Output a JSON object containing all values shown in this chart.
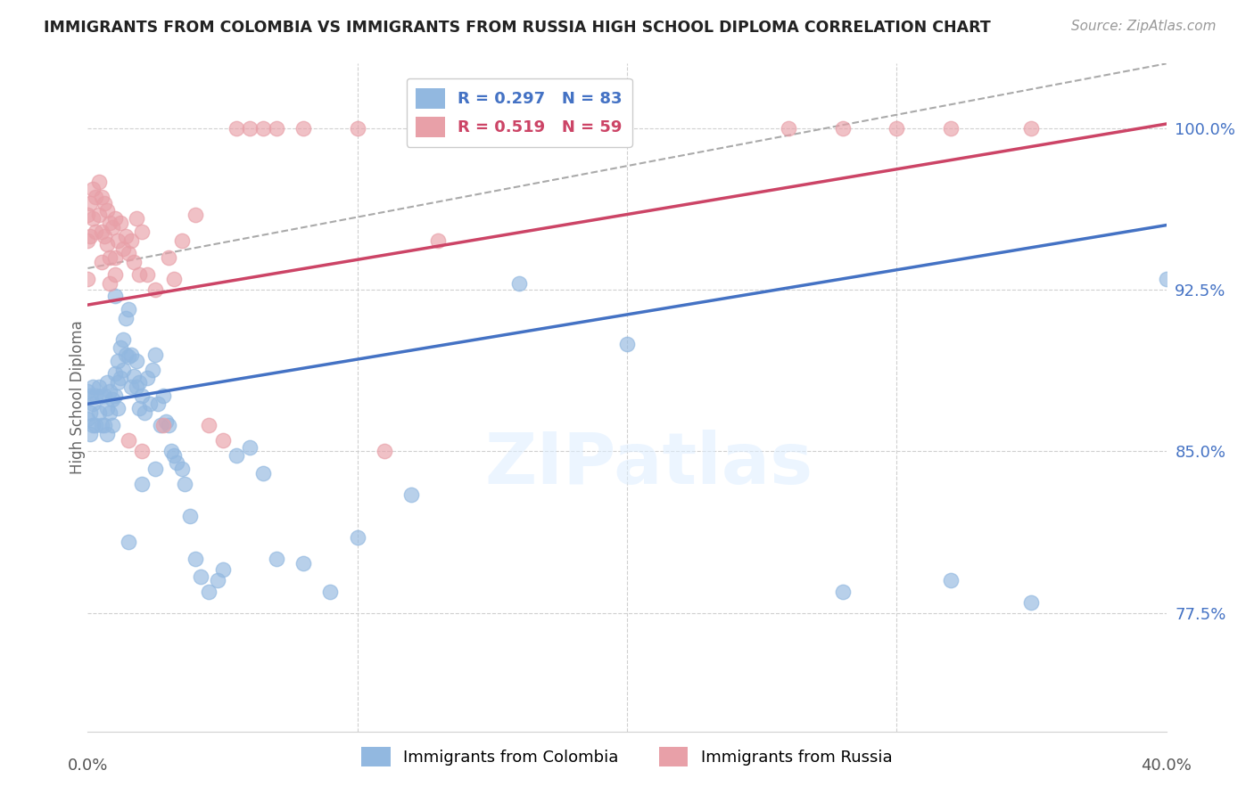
{
  "title": "IMMIGRANTS FROM COLOMBIA VS IMMIGRANTS FROM RUSSIA HIGH SCHOOL DIPLOMA CORRELATION CHART",
  "source": "Source: ZipAtlas.com",
  "ylabel": "High School Diploma",
  "ytick_values": [
    0.775,
    0.85,
    0.925,
    1.0
  ],
  "xlim": [
    0.0,
    0.4
  ],
  "ylim": [
    0.72,
    1.03
  ],
  "color_colombia": "#92b8e0",
  "color_russia": "#e8a0a8",
  "color_line_colombia": "#4472c4",
  "color_line_russia": "#cc4466",
  "color_dashed": "#aaaaaa",
  "r_colombia": 0.297,
  "n_colombia": 83,
  "r_russia": 0.519,
  "n_russia": 59,
  "colombia_line": [
    0.0,
    0.872,
    0.4,
    0.955
  ],
  "russia_line": [
    0.0,
    0.918,
    0.4,
    1.002
  ],
  "dashed_line": [
    0.0,
    0.935,
    0.4,
    1.03
  ],
  "colombia_points_x": [
    0.0,
    0.0,
    0.001,
    0.001,
    0.001,
    0.002,
    0.002,
    0.002,
    0.003,
    0.003,
    0.004,
    0.004,
    0.005,
    0.005,
    0.006,
    0.006,
    0.007,
    0.007,
    0.007,
    0.008,
    0.008,
    0.009,
    0.009,
    0.01,
    0.01,
    0.01,
    0.011,
    0.011,
    0.011,
    0.012,
    0.012,
    0.013,
    0.013,
    0.014,
    0.014,
    0.015,
    0.015,
    0.016,
    0.016,
    0.017,
    0.018,
    0.018,
    0.019,
    0.019,
    0.02,
    0.021,
    0.022,
    0.023,
    0.024,
    0.025,
    0.026,
    0.027,
    0.028,
    0.029,
    0.03,
    0.031,
    0.032,
    0.033,
    0.035,
    0.036,
    0.038,
    0.04,
    0.042,
    0.045,
    0.048,
    0.05,
    0.055,
    0.06,
    0.065,
    0.07,
    0.08,
    0.09,
    0.1,
    0.12,
    0.16,
    0.2,
    0.28,
    0.32,
    0.35,
    0.4,
    0.015,
    0.02,
    0.025
  ],
  "colombia_points_y": [
    0.878,
    0.865,
    0.876,
    0.868,
    0.858,
    0.88,
    0.872,
    0.862,
    0.876,
    0.862,
    0.88,
    0.868,
    0.876,
    0.862,
    0.876,
    0.862,
    0.882,
    0.87,
    0.858,
    0.878,
    0.868,
    0.874,
    0.862,
    0.922,
    0.886,
    0.876,
    0.892,
    0.882,
    0.87,
    0.898,
    0.884,
    0.902,
    0.888,
    0.912,
    0.895,
    0.916,
    0.894,
    0.895,
    0.88,
    0.885,
    0.892,
    0.88,
    0.882,
    0.87,
    0.876,
    0.868,
    0.884,
    0.872,
    0.888,
    0.895,
    0.872,
    0.862,
    0.876,
    0.864,
    0.862,
    0.85,
    0.848,
    0.845,
    0.842,
    0.835,
    0.82,
    0.8,
    0.792,
    0.785,
    0.79,
    0.795,
    0.848,
    0.852,
    0.84,
    0.8,
    0.798,
    0.785,
    0.81,
    0.83,
    0.928,
    0.9,
    0.785,
    0.79,
    0.78,
    0.93,
    0.808,
    0.835,
    0.842
  ],
  "russia_points_x": [
    0.0,
    0.0,
    0.0,
    0.001,
    0.001,
    0.002,
    0.002,
    0.003,
    0.003,
    0.004,
    0.004,
    0.005,
    0.005,
    0.006,
    0.006,
    0.007,
    0.007,
    0.008,
    0.008,
    0.009,
    0.01,
    0.01,
    0.011,
    0.012,
    0.013,
    0.014,
    0.015,
    0.016,
    0.017,
    0.018,
    0.019,
    0.02,
    0.022,
    0.025,
    0.028,
    0.03,
    0.032,
    0.035,
    0.04,
    0.045,
    0.05,
    0.055,
    0.06,
    0.065,
    0.07,
    0.08,
    0.1,
    0.11,
    0.13,
    0.26,
    0.28,
    0.3,
    0.32,
    0.35,
    0.005,
    0.008,
    0.01,
    0.015,
    0.02
  ],
  "russia_points_y": [
    0.96,
    0.948,
    0.93,
    0.965,
    0.95,
    0.972,
    0.958,
    0.968,
    0.952,
    0.975,
    0.96,
    0.968,
    0.952,
    0.965,
    0.95,
    0.962,
    0.946,
    0.956,
    0.94,
    0.954,
    0.958,
    0.94,
    0.948,
    0.956,
    0.944,
    0.95,
    0.942,
    0.948,
    0.938,
    0.958,
    0.932,
    0.952,
    0.932,
    0.925,
    0.862,
    0.94,
    0.93,
    0.948,
    0.96,
    0.862,
    0.855,
    1.0,
    1.0,
    1.0,
    1.0,
    1.0,
    1.0,
    0.85,
    0.948,
    1.0,
    1.0,
    1.0,
    1.0,
    1.0,
    0.938,
    0.928,
    0.932,
    0.855,
    0.85
  ]
}
